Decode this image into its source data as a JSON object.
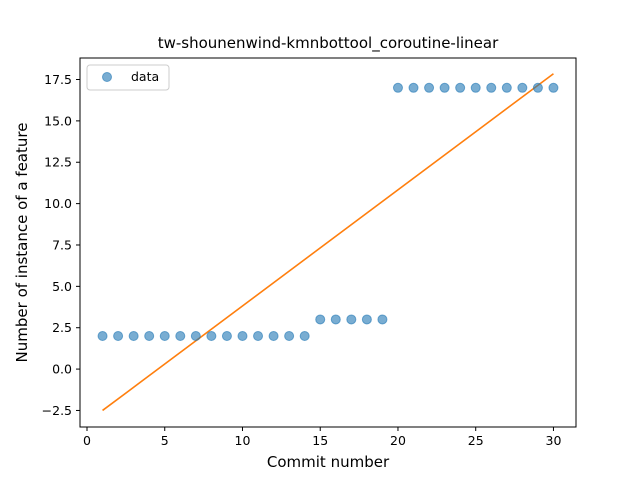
{
  "chart_data": {
    "type": "scatter",
    "title": "tw-shounenwind-kmnbottool_coroutine-linear",
    "xlabel": "Commit number",
    "ylabel": "Number of instance of a feature",
    "xlim": [
      -0.45,
      31.45
    ],
    "ylim": [
      -3.5,
      18.8
    ],
    "xticks": [
      0,
      5,
      10,
      15,
      20,
      25,
      30
    ],
    "yticks": [
      -2.5,
      0.0,
      2.5,
      5.0,
      7.5,
      10.0,
      12.5,
      15.0,
      17.5
    ],
    "ytick_labels": [
      "−2.5",
      "0.0",
      "2.5",
      "5.0",
      "7.5",
      "10.0",
      "12.5",
      "15.0",
      "17.5"
    ],
    "grid": false,
    "legend_position": "top-left",
    "series": [
      {
        "name": "data",
        "kind": "scatter",
        "color": "#1f77b4",
        "x": [
          1,
          2,
          3,
          4,
          5,
          6,
          7,
          8,
          9,
          10,
          11,
          12,
          13,
          14,
          15,
          16,
          17,
          18,
          19,
          20,
          21,
          22,
          23,
          24,
          25,
          26,
          27,
          28,
          29,
          30
        ],
        "y": [
          2,
          2,
          2,
          2,
          2,
          2,
          2,
          2,
          2,
          2,
          2,
          2,
          2,
          2,
          3,
          3,
          3,
          3,
          3,
          17,
          17,
          17,
          17,
          17,
          17,
          17,
          17,
          17,
          17,
          17
        ]
      },
      {
        "kind": "line",
        "color": "#ff7f0e",
        "x": [
          1,
          30
        ],
        "y": [
          -2.5,
          17.85
        ]
      }
    ]
  }
}
